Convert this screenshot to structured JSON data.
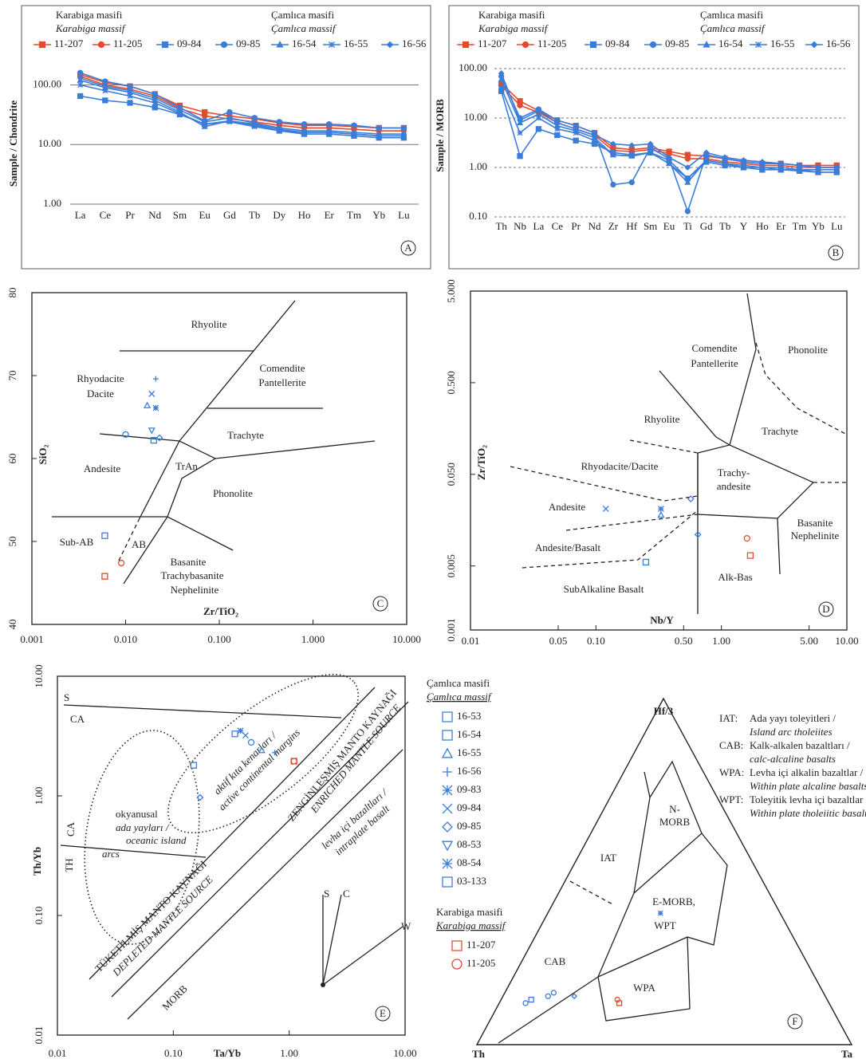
{
  "chart_data": [
    {
      "type": "line",
      "panel": "A",
      "ylabel": "Sample / Chondrite",
      "ylog": true,
      "ylim": [
        1,
        200
      ],
      "yticks": [
        {
          "value": 1,
          "label": "1.00"
        },
        {
          "value": 10,
          "label": "10.00"
        },
        {
          "value": 100,
          "label": "100.00"
        }
      ],
      "grid": true,
      "legend_titles": [
        "Karabiga masifi",
        "Karabiga massif",
        "Çamlıca masifi",
        "Çamlıca massif"
      ],
      "categories": [
        "La",
        "Ce",
        "Pr",
        "Nd",
        "Sm",
        "Eu",
        "Gd",
        "Tb",
        "Dy",
        "Ho",
        "Er",
        "Tm",
        "Yb",
        "Lu"
      ],
      "series": [
        {
          "name": "11-207",
          "color": "#e64a2e",
          "marker": "square",
          "values": [
            150,
            110,
            95,
            70,
            45,
            35,
            30,
            27,
            23,
            21,
            21,
            20,
            19,
            19
          ]
        },
        {
          "name": "11-205",
          "color": "#e64a2e",
          "marker": "circle",
          "values": [
            140,
            100,
            85,
            65,
            40,
            30,
            27,
            24,
            21,
            19,
            19,
            18,
            17,
            17
          ]
        },
        {
          "name": "09-84",
          "color": "#3b7dd8",
          "marker": "square",
          "values": [
            65,
            55,
            50,
            42,
            32,
            22,
            25,
            21,
            17,
            15,
            15,
            14,
            13,
            13
          ]
        },
        {
          "name": "09-85",
          "color": "#3b7dd8",
          "marker": "circle",
          "values": [
            160,
            115,
            95,
            70,
            42,
            25,
            35,
            28,
            24,
            22,
            22,
            21,
            19,
            19
          ]
        },
        {
          "name": "16-54",
          "color": "#3b7dd8",
          "marker": "triangle",
          "values": [
            120,
            90,
            75,
            55,
            35,
            20,
            25,
            22,
            18,
            16,
            16,
            15,
            14,
            14
          ]
        },
        {
          "name": "16-55",
          "color": "#3b7dd8",
          "marker": "asterisk",
          "values": [
            100,
            80,
            65,
            50,
            33,
            22,
            24,
            20,
            17,
            16,
            16,
            15,
            14,
            14
          ]
        },
        {
          "name": "16-56",
          "color": "#3b7dd8",
          "marker": "diamond",
          "values": [
            130,
            95,
            80,
            60,
            38,
            24,
            28,
            23,
            19,
            17,
            17,
            16,
            15,
            15
          ]
        }
      ]
    },
    {
      "type": "line",
      "panel": "B",
      "ylabel": "Sample / MORB",
      "ylog": true,
      "ylim": [
        0.1,
        100
      ],
      "yticks": [
        {
          "value": 0.1,
          "label": "0.10"
        },
        {
          "value": 1,
          "label": "1.00"
        },
        {
          "value": 10,
          "label": "10.00"
        },
        {
          "value": 100,
          "label": "100.00"
        }
      ],
      "grid": true,
      "legend_titles": [
        "Karabiga masifi",
        "Karabiga massif",
        "Çamlıca masifi",
        "Çamlıca massif"
      ],
      "categories": [
        "Th",
        "Nb",
        "La",
        "Ce",
        "Pr",
        "Nd",
        "Zr",
        "Hf",
        "Sm",
        "Eu",
        "Ti",
        "Gd",
        "Tb",
        "Y",
        "Ho",
        "Er",
        "Tm",
        "Yb",
        "Lu"
      ],
      "series": [
        {
          "name": "11-207",
          "color": "#e64a2e",
          "marker": "square",
          "values": [
            50,
            22,
            14,
            9,
            7,
            5,
            2.5,
            2.3,
            2.5,
            2.1,
            1.8,
            1.7,
            1.5,
            1.3,
            1.2,
            1.2,
            1.1,
            1.1,
            1.1
          ]
        },
        {
          "name": "11-205",
          "color": "#e64a2e",
          "marker": "circle",
          "values": [
            45,
            18,
            13,
            8,
            6,
            4.5,
            2.2,
            2.1,
            2.3,
            1.9,
            1.5,
            1.5,
            1.3,
            1.2,
            1.1,
            1.1,
            1,
            1,
            1
          ]
        },
        {
          "name": "09-84",
          "color": "#3b7dd8",
          "marker": "square",
          "values": [
            35,
            1.7,
            6,
            4.5,
            3.5,
            3,
            2,
            1.8,
            2,
            1.4,
            0.6,
            1.3,
            1.1,
            1,
            0.9,
            0.9,
            0.85,
            0.8,
            0.8
          ]
        },
        {
          "name": "09-85",
          "color": "#3b7dd8",
          "marker": "circle",
          "values": [
            70,
            10,
            15,
            9,
            7,
            5,
            0.45,
            0.5,
            2.5,
            1.5,
            0.13,
            1.8,
            1.5,
            1.3,
            1.2,
            1.2,
            1.1,
            1,
            1
          ]
        },
        {
          "name": "16-54",
          "color": "#3b7dd8",
          "marker": "triangle",
          "values": [
            60,
            8,
            12,
            7,
            5.5,
            4,
            1.8,
            1.7,
            2,
            1.2,
            0.5,
            1.4,
            1.2,
            1,
            1,
            0.9,
            0.9,
            0.8,
            0.8
          ]
        },
        {
          "name": "16-55",
          "color": "#3b7dd8",
          "marker": "asterisk",
          "values": [
            40,
            5,
            10,
            6,
            5,
            3.5,
            1.8,
            1.7,
            2,
            1.2,
            0.6,
            1.4,
            1.2,
            1.1,
            1,
            1,
            0.9,
            0.9,
            0.9
          ]
        },
        {
          "name": "16-56",
          "color": "#3b7dd8",
          "marker": "diamond",
          "values": [
            80,
            9,
            14,
            8,
            6,
            4.5,
            3,
            2.8,
            3,
            1.6,
            1,
            2,
            1.6,
            1.4,
            1.3,
            1.2,
            1.1,
            1,
            1
          ]
        }
      ]
    },
    {
      "type": "scatter",
      "panel": "C",
      "xlabel": "Zr/TiO₂",
      "ylabel": "SiO₂",
      "xlog": true,
      "xlim": [
        0.001,
        10
      ],
      "ylim": [
        40,
        80
      ],
      "xticks": [
        0.001,
        {
          "value": 0.01,
          "label": "0.010"
        },
        {
          "value": 0.1,
          "label": "0.100"
        },
        {
          "value": 1,
          "label": "1.000"
        },
        {
          "value": 10,
          "label": "10.000"
        }
      ],
      "yticks": [
        40,
        50,
        60,
        70,
        80
      ],
      "fields": [
        "Rhyolite",
        "Rhyodacite",
        "Dacite",
        "Comendite",
        "Pantellerite",
        "Trachyte",
        "Andesite",
        "TrAn",
        "Phonolite",
        "Sub-AB",
        "AB",
        "Basanite",
        "Trachybasanite",
        "Nephelinite"
      ],
      "series": [
        {
          "color": "#e64a2e",
          "x": [
            0.006,
            0.009
          ],
          "y": [
            45.8,
            47.4
          ],
          "markers": [
            "square",
            "circle"
          ]
        },
        {
          "color": "#3b7dd8",
          "x": [
            0.006,
            0.021,
            0.019,
            0.021,
            0.017,
            0.019,
            0.02,
            0.023,
            0.01
          ],
          "y": [
            50.7,
            69.6,
            67.8,
            66.1,
            66.4,
            63.4,
            62.2,
            62.5,
            62.9
          ],
          "markers": [
            "square",
            "plus",
            "x",
            "asterisk",
            "triangle",
            "tri-down",
            "square",
            "diamond",
            "circle"
          ]
        }
      ]
    },
    {
      "type": "scatter",
      "panel": "D",
      "xlabel": "Nb/Y",
      "ylabel": "Zr/TiO₂",
      "xlog": true,
      "ylog": true,
      "xlim": [
        0.01,
        10
      ],
      "ylim": [
        0.001,
        5
      ],
      "xticks": [
        0.01,
        0.05,
        {
          "value": 0.1,
          "label": "0.10"
        },
        {
          "value": 0.5,
          "label": "0.50"
        },
        {
          "value": 1,
          "label": "1.00"
        },
        {
          "value": 5,
          "label": "5.00"
        },
        {
          "value": 10,
          "label": "10.00"
        }
      ],
      "yticks": [
        0.001,
        0.005,
        {
          "value": 0.05,
          "label": "0.050"
        },
        {
          "value": 0.5,
          "label": "0.500"
        },
        {
          "value": 5,
          "label": "5.000"
        }
      ],
      "fields": [
        "Comendite",
        "Pantellerite",
        "Phonolite",
        "Rhyolite",
        "Trachyte",
        "Rhyodacite/Dacite",
        "Trachy-",
        "andesite",
        "Andesite",
        "Basanite",
        "Nephelinite",
        "Andesite/Basalt",
        "Alk-Bas",
        "SubAlkaline Basalt"
      ],
      "series": [
        {
          "color": "#e64a2e",
          "x": [
            1.6,
            1.7
          ],
          "y": [
            0.01,
            0.0065
          ],
          "markers": [
            "circle",
            "square"
          ]
        },
        {
          "color": "#3b7dd8",
          "x": [
            0.12,
            0.33,
            0.33,
            0.57,
            0.65,
            0.25
          ],
          "y": [
            0.021,
            0.021,
            0.018,
            0.027,
            0.011,
            0.0055
          ],
          "markers": [
            "x",
            "asterisk",
            "triangle",
            "diamond",
            "diamond",
            "square"
          ]
        }
      ]
    },
    {
      "type": "scatter",
      "panel": "E",
      "xlabel": "Ta/Yb",
      "ylabel": "Th/Yb",
      "xlog": true,
      "ylog": true,
      "xlim": [
        0.01,
        10
      ],
      "ylim": [
        0.01,
        10
      ],
      "xticks": [
        0.01,
        {
          "value": 0.1,
          "label": "0.10"
        },
        {
          "value": 1,
          "label": "1.00"
        },
        {
          "value": 10,
          "label": "10.00"
        }
      ],
      "yticks": [
        0.01,
        {
          "value": 0.1,
          "label": "0.10"
        },
        {
          "value": 1,
          "label": "1.00"
        },
        {
          "value": 10,
          "label": "10.00"
        }
      ],
      "fields": [
        "S",
        "CA",
        "okyanusal",
        "ada yayları /",
        "oceanic island",
        "arcs",
        "CA",
        "TH",
        "aktif kıta kenarları /",
        "active continental margins",
        "ZENGİNLEŞMİŞ MANTO KAYNAĞI",
        "ENRICHED MANTLE SOURCE",
        "levha içi bazaltları /",
        "intraplate basalt",
        "TÜKETİLMİŞ MANTO KAYNAĞI",
        "DEPLETED MANTLE SOURCE",
        "MORB",
        "S",
        "C",
        "W"
      ],
      "legend": [
        {
          "title": "Çamlıca masifi",
          "subtitle": "Çamlıca massif",
          "color": "#3b7dd8",
          "items": [
            {
              "name": "16-53",
              "marker": "square"
            },
            {
              "name": "16-54",
              "marker": "square"
            },
            {
              "name": "16-55",
              "marker": "triangle"
            },
            {
              "name": "16-56",
              "marker": "plus"
            },
            {
              "name": "09-83",
              "marker": "asterisk"
            },
            {
              "name": "09-84",
              "marker": "x"
            },
            {
              "name": "09-85",
              "marker": "diamond"
            },
            {
              "name": "08-53",
              "marker": "tri-down"
            },
            {
              "name": "08-54",
              "marker": "asterisk"
            },
            {
              "name": "03-133",
              "marker": "square"
            }
          ]
        },
        {
          "title": "Karabiga masifi",
          "subtitle": "Karabiga massif",
          "color": "#e64a2e",
          "items": [
            {
              "name": "11-207",
              "marker": "square"
            },
            {
              "name": "11-205",
              "marker": "circle"
            }
          ]
        }
      ],
      "series": [
        {
          "color": "#3b7dd8",
          "x": [
            0.15,
            0.17,
            0.34,
            0.38,
            0.42,
            0.47,
            0.58,
            0.75
          ],
          "y": [
            1.8,
            0.97,
            3.3,
            3.5,
            3.2,
            2.8,
            2.4,
            2.3
          ],
          "markers": [
            "square",
            "diamond",
            "square",
            "asterisk",
            "x",
            "circle",
            "triangle",
            "plus"
          ]
        },
        {
          "color": "#e64a2e",
          "x": [
            1.1,
            1.1
          ],
          "y": [
            1.95,
            1.95
          ],
          "markers": [
            "square",
            "circle"
          ]
        }
      ]
    },
    {
      "type": "ternary",
      "panel": "F",
      "vertices": [
        "Hf/3",
        "Th",
        "Ta"
      ],
      "fields": [
        "IAT",
        "N-",
        "MORB",
        "E-MORB,",
        "WPT",
        "CAB",
        "WPA"
      ],
      "notes": [
        {
          "abbr": "IAT:",
          "text": [
            "Ada yayı toleyitleri /",
            "Island arc tholeiites"
          ]
        },
        {
          "abbr": "CAB:",
          "text": [
            "Kalk-alkalen bazaltları /",
            "calc-alcaline basalts"
          ]
        },
        {
          "abbr": "WPA:",
          "text": [
            "Levha içi alkalin bazaltlar /",
            "Within plate alcaline basalts"
          ]
        },
        {
          "abbr": "WPT:",
          "text": [
            "Toleyitik levha içi bazaltlar /",
            "Within plate tholeiitic basalts"
          ]
        }
      ],
      "series": [
        {
          "color": "#3b7dd8",
          "th": [
            0.81,
            0.79,
            0.74,
            0.72,
            0.67,
            0.32
          ],
          "hf": [
            0.12,
            0.13,
            0.14,
            0.15,
            0.14,
            0.38
          ],
          "ta": [
            0.07,
            0.08,
            0.12,
            0.13,
            0.19,
            0.3
          ],
          "markers": [
            "circle",
            "square",
            "circle",
            "circle",
            "diamond",
            "asterisk"
          ]
        },
        {
          "color": "#e64a2e",
          "th": [
            0.56,
            0.56
          ],
          "hf": [
            0.13,
            0.12
          ],
          "ta": [
            0.31,
            0.32
          ],
          "markers": [
            "circle",
            "square"
          ]
        }
      ]
    }
  ]
}
